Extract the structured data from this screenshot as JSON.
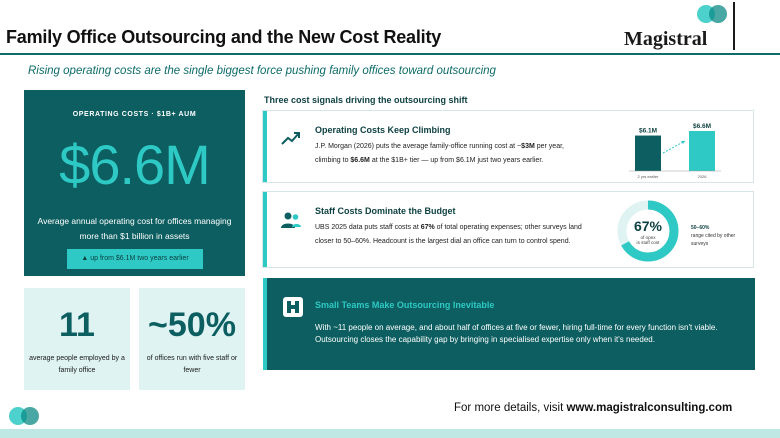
{
  "header": {
    "title": "Family Office Outsourcing and the New Cost Reality",
    "brand": "Magistral"
  },
  "subtitle": "Rising operating costs are the single biggest force pushing family offices toward outsourcing",
  "hero": {
    "label": "OPERATING COSTS · $1B+ AUM",
    "value": "$6.6M",
    "description": "Average annual operating cost for offices managing more than $1 billion in assets",
    "pill": "▲ up from $6.1M two years earlier"
  },
  "stats": [
    {
      "value": "11",
      "description": "average people employed by a family office"
    },
    {
      "value": "~50%",
      "description": "of offices run with five staff or fewer"
    }
  ],
  "section_heading": "Three cost signals driving the outsourcing shift",
  "cards": [
    {
      "heading": "Operating Costs Keep Climbing",
      "text_pre": "J.P. Morgan (2026) puts the average family-office running cost at ~",
      "text_bold_1": "$3M",
      "text_mid": " per year, climbing to ",
      "text_bold_2": "$6.6M",
      "text_post": " at the $1B+ tier — up from $6.1M just two years earlier."
    },
    {
      "heading": "Staff Costs Dominate the Budget",
      "text_pre": "UBS 2025 data puts staff costs at ",
      "text_bold_1": "67%",
      "text_post": " of total operating expenses; other surveys land closer to 50–60%. Headcount is the largest dial an office can turn to control spend."
    },
    {
      "heading": "Small Teams Make Outsourcing Inevitable",
      "text": "With ~11 people on average, and about half of offices at five or fewer, hiring full-time for every function isn't viable. Outsourcing closes the capability gap by bringing in specialised expertise only when it's needed."
    }
  ],
  "chart_data": [
    {
      "type": "bar",
      "categories": [
        "2 yrs earlier",
        "2026"
      ],
      "values": [
        6.1,
        6.6
      ],
      "data_labels": [
        "$6.1M",
        "$6.6M"
      ],
      "ylim": [
        0,
        7
      ],
      "colors": [
        "#0c5e60",
        "#2ec9c4"
      ]
    },
    {
      "type": "pie",
      "categories": [
        "staff cost",
        "other opex"
      ],
      "values": [
        67,
        33
      ],
      "center_value": "67%",
      "center_label": "of opex is staff cost",
      "side_value": "50–60%",
      "side_label": "range cited by other surveys",
      "colors": [
        "#2ec9c4",
        "#dff3f3"
      ]
    }
  ],
  "footer": {
    "prefix": "For more details, visit ",
    "link": "www.magistralconsulting.com"
  },
  "colors": {
    "primary": "#0c5e60",
    "accent": "#2ec9c4",
    "light": "#dff3f3"
  }
}
